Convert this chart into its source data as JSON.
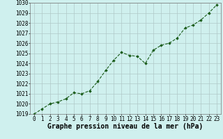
{
  "x": [
    0,
    1,
    2,
    3,
    4,
    5,
    6,
    7,
    8,
    9,
    10,
    11,
    12,
    13,
    14,
    15,
    16,
    17,
    18,
    19,
    20,
    21,
    22,
    23
  ],
  "y": [
    1019.0,
    1019.5,
    1020.0,
    1020.2,
    1020.5,
    1021.1,
    1021.0,
    1021.3,
    1022.2,
    1023.3,
    1024.3,
    1025.1,
    1024.8,
    1024.7,
    1024.0,
    1025.3,
    1025.8,
    1026.0,
    1026.5,
    1027.5,
    1027.8,
    1028.3,
    1029.0,
    1029.8
  ],
  "ylim": [
    1019,
    1030
  ],
  "yticks": [
    1019,
    1020,
    1021,
    1022,
    1023,
    1024,
    1025,
    1026,
    1027,
    1028,
    1029,
    1030
  ],
  "xticks": [
    0,
    1,
    2,
    3,
    4,
    5,
    6,
    7,
    8,
    9,
    10,
    11,
    12,
    13,
    14,
    15,
    16,
    17,
    18,
    19,
    20,
    21,
    22,
    23
  ],
  "xlabel": "Graphe pression niveau de la mer (hPa)",
  "line_color": "#1a5c1a",
  "marker": "D",
  "marker_size": 1.8,
  "bg_color": "#cff0ee",
  "grid_color": "#b0c8c8",
  "tick_fontsize": 5.5,
  "xlabel_fontsize": 7.0,
  "linewidth": 0.8
}
